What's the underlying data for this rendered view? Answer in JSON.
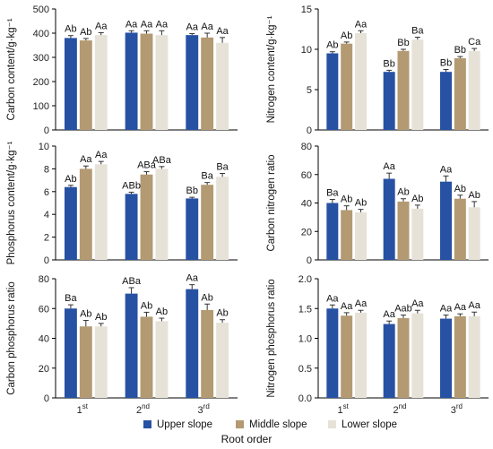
{
  "legend": [
    {
      "name": "Upper slope",
      "color": "#2751a3"
    },
    {
      "name": "Middle slope",
      "color": "#b39a72"
    },
    {
      "name": "Lower slope",
      "color": "#e6e2d8"
    }
  ],
  "x_title": "Root order",
  "chart_data": [
    {
      "type": "bar",
      "ylabel": "Carbon content/g·kg⁻¹",
      "ylim": [
        0,
        500
      ],
      "yticks": [
        0,
        100,
        200,
        300,
        400,
        500
      ],
      "categories": [
        "1st",
        "2nd",
        "3rd"
      ],
      "show_xticklabels": false,
      "series": [
        {
          "name": "Upper slope",
          "values": [
            380,
            402,
            392
          ],
          "errors": [
            10,
            8,
            6
          ],
          "labels": [
            "Ab",
            "Aa",
            "Aa"
          ]
        },
        {
          "name": "Middle slope",
          "values": [
            370,
            398,
            382
          ],
          "errors": [
            8,
            12,
            18
          ],
          "labels": [
            "Ab",
            "Aa",
            "Aa"
          ]
        },
        {
          "name": "Lower slope",
          "values": [
            392,
            392,
            360
          ],
          "errors": [
            10,
            18,
            22
          ],
          "labels": [
            "Aa",
            "Aa",
            "Aa"
          ]
        }
      ]
    },
    {
      "type": "bar",
      "ylabel": "Nitrogen content/g·kg⁻¹",
      "ylim": [
        0,
        15
      ],
      "yticks": [
        0,
        5,
        10,
        15
      ],
      "categories": [
        "1st",
        "2nd",
        "3rd"
      ],
      "show_xticklabels": false,
      "series": [
        {
          "name": "Upper slope",
          "values": [
            9.5,
            7.2,
            7.2
          ],
          "errors": [
            0.2,
            0.2,
            0.3
          ],
          "labels": [
            "Ab",
            "Bb",
            "Bb"
          ]
        },
        {
          "name": "Middle slope",
          "values": [
            10.7,
            9.8,
            8.9
          ],
          "errors": [
            0.2,
            0.2,
            0.2
          ],
          "labels": [
            "Ab",
            "Bb",
            "Bb"
          ]
        },
        {
          "name": "Lower slope",
          "values": [
            12.0,
            11.2,
            9.8
          ],
          "errors": [
            0.3,
            0.3,
            0.3
          ],
          "labels": [
            "Aa",
            "Ba",
            "Ca"
          ]
        }
      ]
    },
    {
      "type": "bar",
      "ylabel": "Phosphorus content/g·kg⁻¹",
      "ylim": [
        0,
        10
      ],
      "yticks": [
        0,
        2,
        4,
        6,
        8,
        10
      ],
      "categories": [
        "1st",
        "2nd",
        "3rd"
      ],
      "show_xticklabels": false,
      "series": [
        {
          "name": "Upper slope",
          "values": [
            6.4,
            5.8,
            5.4
          ],
          "errors": [
            0.15,
            0.15,
            0.1
          ],
          "labels": [
            "Ab",
            "ABb",
            "Bb"
          ]
        },
        {
          "name": "Middle slope",
          "values": [
            8.0,
            7.5,
            6.6
          ],
          "errors": [
            0.25,
            0.25,
            0.2
          ],
          "labels": [
            "Aa",
            "ABa",
            "Ba"
          ]
        },
        {
          "name": "Lower slope",
          "values": [
            8.4,
            8.0,
            7.3
          ],
          "errors": [
            0.25,
            0.2,
            0.3
          ],
          "labels": [
            "Aa",
            "ABa",
            "Ba"
          ]
        }
      ]
    },
    {
      "type": "bar",
      "ylabel": "Carbon nitrogen ratio",
      "ylim": [
        0,
        80
      ],
      "yticks": [
        0,
        20,
        40,
        60,
        80
      ],
      "categories": [
        "1st",
        "2nd",
        "3rd"
      ],
      "show_xticklabels": false,
      "series": [
        {
          "name": "Upper slope",
          "values": [
            40,
            57,
            55
          ],
          "errors": [
            2.5,
            4,
            4
          ],
          "labels": [
            "Ba",
            "Aa",
            "Aa"
          ]
        },
        {
          "name": "Middle slope",
          "values": [
            35,
            41,
            43
          ],
          "errors": [
            3,
            2,
            2.5
          ],
          "labels": [
            "Ab",
            "Ab",
            "Ab"
          ]
        },
        {
          "name": "Lower slope",
          "values": [
            33.5,
            36,
            37
          ],
          "errors": [
            2,
            2.5,
            4
          ],
          "labels": [
            "Ab",
            "Ab",
            "Ab"
          ]
        }
      ]
    },
    {
      "type": "bar",
      "ylabel": "Carbon phosphorus ratio",
      "ylim": [
        0,
        80
      ],
      "yticks": [
        0,
        20,
        40,
        60,
        80
      ],
      "categories": [
        "1st",
        "2nd",
        "3rd"
      ],
      "show_xticklabels": true,
      "series": [
        {
          "name": "Upper slope",
          "values": [
            60,
            70,
            73
          ],
          "errors": [
            2.5,
            4,
            3
          ],
          "labels": [
            "Ba",
            "ABa",
            "Aa"
          ]
        },
        {
          "name": "Middle slope",
          "values": [
            48,
            54.5,
            59
          ],
          "errors": [
            4,
            3,
            4
          ],
          "labels": [
            "Ab",
            "Ab",
            "Ab"
          ]
        },
        {
          "name": "Lower slope",
          "values": [
            48,
            51.5,
            50.5
          ],
          "errors": [
            2,
            2,
            2
          ],
          "labels": [
            "Ab",
            "Ab",
            "Ab"
          ]
        }
      ]
    },
    {
      "type": "bar",
      "ylabel": "Nitrogen phosphorus ratio",
      "ylim": [
        0,
        2.0
      ],
      "yticks": [
        0,
        0.5,
        1.0,
        1.5,
        2.0
      ],
      "categories": [
        "1st",
        "2nd",
        "3rd"
      ],
      "show_xticklabels": true,
      "series": [
        {
          "name": "Upper slope",
          "values": [
            1.5,
            1.24,
            1.33
          ],
          "errors": [
            0.06,
            0.05,
            0.06
          ],
          "labels": [
            "Aa",
            "Aa",
            "Aa"
          ]
        },
        {
          "name": "Middle slope",
          "values": [
            1.38,
            1.34,
            1.37
          ],
          "errors": [
            0.05,
            0.05,
            0.04
          ],
          "labels": [
            "Aa",
            "Aab",
            "Aa"
          ]
        },
        {
          "name": "Lower slope",
          "values": [
            1.43,
            1.42,
            1.37
          ],
          "errors": [
            0.04,
            0.05,
            0.07
          ],
          "labels": [
            "Aa",
            "Aa",
            "Aa"
          ]
        }
      ]
    }
  ]
}
